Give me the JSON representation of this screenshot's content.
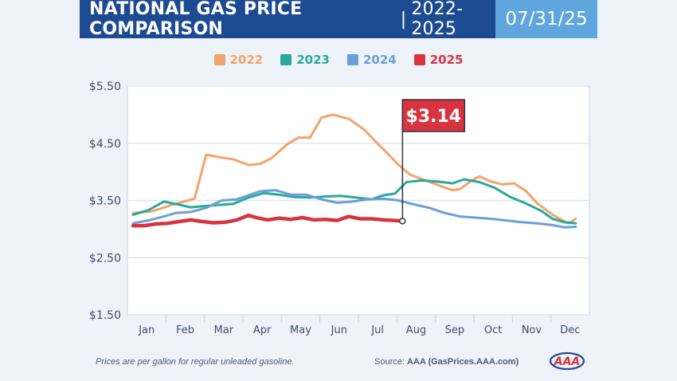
{
  "header": {
    "title": "NATIONAL GAS PRICE COMPARISON",
    "separator": "|",
    "subtitle": "2022-2025",
    "date": "07/31/25"
  },
  "legend": [
    {
      "label": "2022",
      "color": "#f2a36b"
    },
    {
      "label": "2023",
      "color": "#2aa99a"
    },
    {
      "label": "2024",
      "color": "#6b9fd8"
    },
    {
      "label": "2025",
      "color": "#d7343f"
    }
  ],
  "chart_data": {
    "type": "line",
    "title": "NATIONAL GAS PRICE COMPARISON | 2022-2025",
    "xlabel": "",
    "ylabel": "",
    "x_categories": [
      "Jan",
      "Feb",
      "Mar",
      "Apr",
      "May",
      "Jun",
      "Jul",
      "Aug",
      "Sep",
      "Oct",
      "Nov",
      "Dec"
    ],
    "y_ticks": [
      "$5.50",
      "$4.50",
      "$3.50",
      "$2.50",
      "$1.50"
    ],
    "ylim": [
      1.5,
      5.5
    ],
    "grid": true,
    "legend_position": "top-center",
    "series": [
      {
        "name": "2022",
        "color": "#f2a36b",
        "x": [
          0.0,
          0.5,
          1.0,
          1.6,
          1.9,
          2.3,
          2.6,
          3.0,
          3.3,
          3.6,
          4.0,
          4.3,
          4.6,
          4.9,
          5.2,
          5.6,
          6.0,
          6.3,
          6.6,
          6.9,
          7.2,
          7.6,
          8.0,
          8.3,
          8.5,
          8.8,
          9.0,
          9.3,
          9.6,
          9.9,
          10.2,
          10.5,
          10.9,
          11.3,
          11.5
        ],
        "y": [
          3.28,
          3.31,
          3.42,
          3.53,
          4.3,
          4.25,
          4.22,
          4.12,
          4.14,
          4.24,
          4.48,
          4.6,
          4.6,
          4.95,
          5.0,
          4.93,
          4.74,
          4.53,
          4.33,
          4.12,
          3.95,
          3.85,
          3.75,
          3.68,
          3.7,
          3.85,
          3.92,
          3.83,
          3.78,
          3.8,
          3.67,
          3.45,
          3.25,
          3.1,
          3.18
        ]
      },
      {
        "name": "2023",
        "color": "#2aa99a",
        "x": [
          0.0,
          0.4,
          0.8,
          1.1,
          1.5,
          1.8,
          2.2,
          2.6,
          3.0,
          3.4,
          3.8,
          4.2,
          4.6,
          5.0,
          5.4,
          5.8,
          6.2,
          6.5,
          6.8,
          7.1,
          7.5,
          7.9,
          8.3,
          8.6,
          9.0,
          9.4,
          9.8,
          10.2,
          10.6,
          10.9,
          11.2,
          11.5
        ],
        "y": [
          3.25,
          3.33,
          3.48,
          3.44,
          3.38,
          3.4,
          3.42,
          3.44,
          3.55,
          3.63,
          3.6,
          3.56,
          3.55,
          3.57,
          3.58,
          3.55,
          3.52,
          3.59,
          3.62,
          3.82,
          3.85,
          3.83,
          3.8,
          3.87,
          3.82,
          3.72,
          3.56,
          3.45,
          3.32,
          3.18,
          3.12,
          3.1
        ]
      },
      {
        "name": "2024",
        "color": "#6b9fd8",
        "x": [
          0.0,
          0.4,
          0.8,
          1.1,
          1.5,
          1.9,
          2.3,
          2.7,
          3.0,
          3.3,
          3.7,
          4.1,
          4.5,
          4.9,
          5.3,
          5.7,
          6.1,
          6.5,
          6.9,
          7.3,
          7.7,
          8.1,
          8.5,
          8.9,
          9.3,
          9.7,
          10.1,
          10.5,
          10.9,
          11.2,
          11.5
        ],
        "y": [
          3.1,
          3.15,
          3.22,
          3.28,
          3.3,
          3.37,
          3.5,
          3.52,
          3.59,
          3.66,
          3.68,
          3.6,
          3.6,
          3.52,
          3.46,
          3.48,
          3.52,
          3.53,
          3.5,
          3.43,
          3.37,
          3.28,
          3.22,
          3.2,
          3.18,
          3.15,
          3.12,
          3.1,
          3.07,
          3.03,
          3.04
        ]
      },
      {
        "name": "2025",
        "color": "#d7343f",
        "x": [
          0.0,
          0.3,
          0.6,
          0.9,
          1.2,
          1.5,
          1.8,
          2.1,
          2.4,
          2.7,
          3.0,
          3.2,
          3.5,
          3.8,
          4.1,
          4.4,
          4.7,
          5.0,
          5.3,
          5.6,
          5.9,
          6.2,
          6.5,
          6.8,
          7.0
        ],
        "y": [
          3.06,
          3.06,
          3.09,
          3.1,
          3.13,
          3.16,
          3.13,
          3.11,
          3.12,
          3.16,
          3.24,
          3.2,
          3.16,
          3.19,
          3.17,
          3.2,
          3.16,
          3.17,
          3.15,
          3.22,
          3.18,
          3.18,
          3.16,
          3.15,
          3.14
        ]
      }
    ],
    "annotation": {
      "label": "$3.14",
      "series": "2025",
      "x": 7.0,
      "y": 3.14
    }
  },
  "footer": {
    "note": "Prices are per gallon for regular unleaded gasoline.",
    "source_prefix": "Source:",
    "source_value": "AAA (GasPrices.AAA.com)",
    "logo_text": "AAA"
  }
}
